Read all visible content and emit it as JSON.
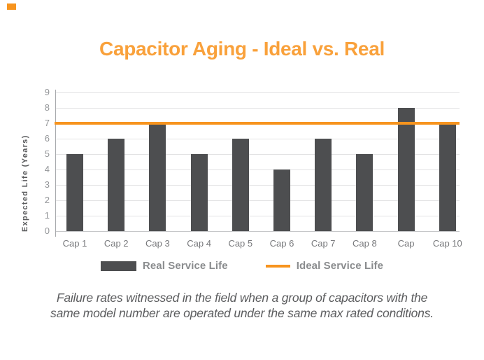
{
  "page": {
    "accent_color": "#F7941E",
    "bar_color": "#4D4E50",
    "title_color": "#F9A13B"
  },
  "title": {
    "text": "Capacitor Aging - Ideal vs. Real"
  },
  "chart_data": {
    "type": "bar",
    "title": "Capacitor Aging - Ideal vs. Real",
    "categories": [
      "Cap 1",
      "Cap 2",
      "Cap 3",
      "Cap 4",
      "Cap 5",
      "Cap 6",
      "Cap 7",
      "Cap 8",
      "Cap",
      "Cap 10"
    ],
    "series": [
      {
        "name": "Real Service Life",
        "values": [
          5,
          6,
          7,
          5,
          6,
          4,
          6,
          5,
          8,
          7
        ],
        "color": "#4D4E50"
      }
    ],
    "ref_line": {
      "name": "Ideal Service Life",
      "value": 7,
      "color": "#F7941E"
    },
    "xlabel": "",
    "ylabel": "Expected Life (Years)",
    "ylim": [
      0,
      9
    ],
    "ytick_step": 1,
    "grid": true,
    "legend_position": "bottom"
  },
  "caption": {
    "lines": [
      "Failure rates witnessed in the field when a group of capacitors with the",
      "same model number are operated under the same max rated conditions."
    ]
  }
}
